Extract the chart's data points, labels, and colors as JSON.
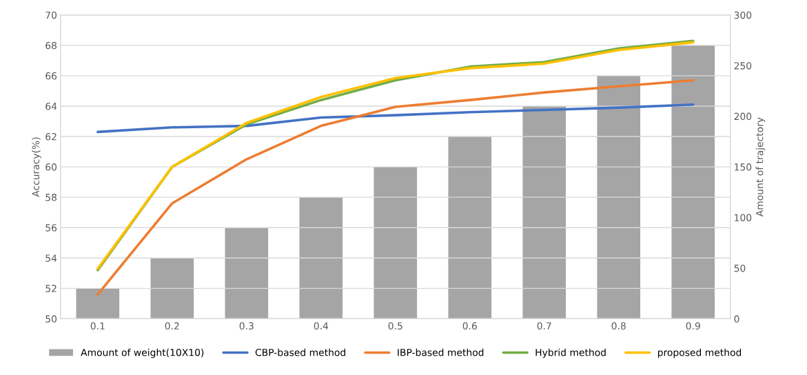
{
  "chart_data": {
    "type": "line",
    "categories": [
      "0.1",
      "0.2",
      "0.3",
      "0.4",
      "0.5",
      "0.6",
      "0.7",
      "0.8",
      "0.9"
    ],
    "ylabel": "Accuracy(%)",
    "y2label": "Amount of trajectory",
    "ylim": [
      50,
      70
    ],
    "yticks": [
      50,
      52,
      54,
      56,
      58,
      60,
      62,
      64,
      66,
      68,
      70
    ],
    "y2lim": [
      0,
      300
    ],
    "y2ticks": [
      0,
      50,
      100,
      150,
      200,
      250,
      300
    ],
    "grid": "y",
    "legend": "bottom",
    "marker": "none",
    "line_style": "solid",
    "series": [
      {
        "name": "Amount of weight(10X10)",
        "type": "bar",
        "axis": "y2",
        "color": "#a5a5a5",
        "values": [
          30,
          60,
          90,
          120,
          150,
          180,
          210,
          240,
          270
        ]
      },
      {
        "name": "CBP-based method",
        "color": "#4472c4",
        "values": [
          62.3,
          62.6,
          62.7,
          63.25,
          63.4,
          63.6,
          63.75,
          63.9,
          64.1
        ]
      },
      {
        "name": "IBP-based method",
        "color": "#ed7d31",
        "values": [
          51.6,
          57.6,
          60.5,
          62.7,
          63.95,
          64.4,
          64.9,
          65.3,
          65.7
        ]
      },
      {
        "name": "Hybrid method",
        "color": "#70ad47",
        "values": [
          53.2,
          60.0,
          62.8,
          64.4,
          65.7,
          66.6,
          66.9,
          67.8,
          68.3
        ]
      },
      {
        "name": "proposed method",
        "color": "#ffc000",
        "values": [
          53.3,
          60.0,
          62.9,
          64.6,
          65.85,
          66.5,
          66.8,
          67.7,
          68.2
        ]
      }
    ]
  }
}
